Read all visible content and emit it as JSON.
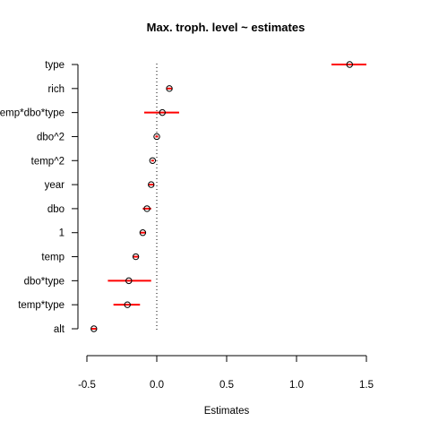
{
  "chart_data": {
    "type": "scatter",
    "title": "Max. troph. level ~ estimates",
    "xlabel": "Estimates",
    "ylabel": "",
    "xlim": [
      -0.5,
      1.5
    ],
    "x_ticks": [
      "-0.5",
      "0.0",
      "0.5",
      "1.0",
      "1.5"
    ],
    "x_tick_values": [
      -0.5,
      0.0,
      0.5,
      1.0,
      1.5
    ],
    "reference_line": 0,
    "grid": false,
    "legend": "none",
    "series": [
      {
        "categories": [
          "type",
          "rich",
          "temp*dbo*type",
          "dbo^2",
          "temp^2",
          "year",
          "dbo",
          "1",
          "temp",
          "dbo*type",
          "temp*type",
          "alt"
        ],
        "estimates": [
          1.38,
          0.09,
          0.04,
          0.0,
          -0.03,
          -0.04,
          -0.07,
          -0.1,
          -0.15,
          -0.2,
          -0.21,
          -0.45
        ],
        "ci_low": [
          1.25,
          0.07,
          -0.09,
          -0.01,
          -0.04,
          -0.06,
          -0.1,
          -0.12,
          -0.17,
          -0.35,
          -0.31,
          -0.47
        ],
        "ci_high": [
          1.5,
          0.11,
          0.16,
          0.01,
          -0.02,
          -0.02,
          -0.04,
          -0.08,
          -0.13,
          -0.04,
          -0.12,
          -0.43
        ]
      }
    ],
    "colors": {
      "interval": "#ff0000",
      "point": "#000000",
      "axis": "#000000"
    }
  }
}
